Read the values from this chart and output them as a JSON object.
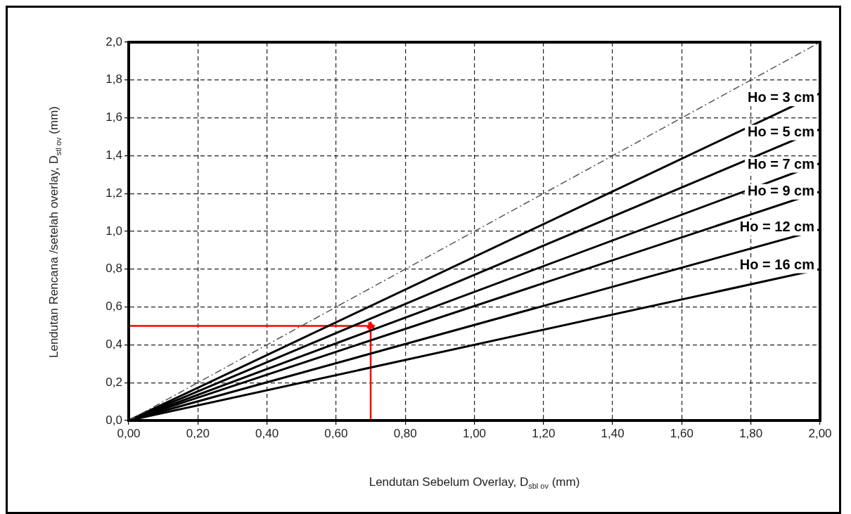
{
  "chart_data": {
    "type": "line",
    "xlabel": "Lendutan Sebelum Overlay, D$_{sbl ov}$ (mm)",
    "ylabel": "Lendutan Rencana /setelah overlay, D$_{stl ov}$ (mm)",
    "xlim": [
      0,
      2
    ],
    "ylim": [
      0,
      2
    ],
    "xticks": [
      {
        "value": 0,
        "label": "0,00"
      },
      {
        "value": 0.2,
        "label": "0,20"
      },
      {
        "value": 0.4,
        "label": "0,40"
      },
      {
        "value": 0.6,
        "label": "0,60"
      },
      {
        "value": 0.8,
        "label": "0,80"
      },
      {
        "value": 1,
        "label": "1,00"
      },
      {
        "value": 1.2,
        "label": "1,20"
      },
      {
        "value": 1.4,
        "label": "1,40"
      },
      {
        "value": 1.6,
        "label": "1,60"
      },
      {
        "value": 1.8,
        "label": "1,80"
      },
      {
        "value": 2,
        "label": "2,00"
      }
    ],
    "yticks": [
      {
        "value": 0,
        "label": "0,0"
      },
      {
        "value": 0.2,
        "label": "0,2"
      },
      {
        "value": 0.4,
        "label": "0,4"
      },
      {
        "value": 0.6,
        "label": "0,6"
      },
      {
        "value": 0.8,
        "label": "0,8"
      },
      {
        "value": 1,
        "label": "1,0"
      },
      {
        "value": 1.2,
        "label": "1,2"
      },
      {
        "value": 1.4,
        "label": "1,4"
      },
      {
        "value": 1.6,
        "label": "1,6"
      },
      {
        "value": 1.8,
        "label": "1,8"
      },
      {
        "value": 2,
        "label": "2,0"
      }
    ],
    "grid": true,
    "legend": false,
    "marker": "none",
    "line_style": "solid",
    "series": [
      {
        "color": "#555555",
        "line_style": "dashed",
        "x": [
          0,
          2
        ],
        "values": [
          0,
          2
        ]
      },
      {
        "name": "Ho = 3 cm",
        "color": "#000000",
        "x": [
          0,
          2
        ],
        "values": [
          0,
          1.73
        ]
      },
      {
        "name": "Ho = 5 cm",
        "color": "#000000",
        "x": [
          0,
          2
        ],
        "values": [
          0,
          1.54
        ]
      },
      {
        "name": "Ho = 7 cm",
        "color": "#000000",
        "x": [
          0,
          2
        ],
        "values": [
          0,
          1.36
        ]
      },
      {
        "name": "Ho = 9 cm",
        "color": "#000000",
        "x": [
          0,
          2
        ],
        "values": [
          0,
          1.21
        ]
      },
      {
        "name": "Ho = 12 cm",
        "color": "#000000",
        "x": [
          0,
          2
        ],
        "values": [
          0,
          1.01
        ]
      },
      {
        "name": "Ho = 16 cm",
        "color": "#000000",
        "x": [
          0,
          2
        ],
        "values": [
          0,
          0.8
        ]
      },
      {
        "color": "#ff0000",
        "marker": "triangle",
        "x": [
          0,
          0.7
        ],
        "values": [
          0.5,
          0.5
        ]
      },
      {
        "color": "#ff0000",
        "marker": "triangle",
        "x": [
          0.7,
          0.7
        ],
        "values": [
          0,
          0.5
        ]
      }
    ]
  }
}
